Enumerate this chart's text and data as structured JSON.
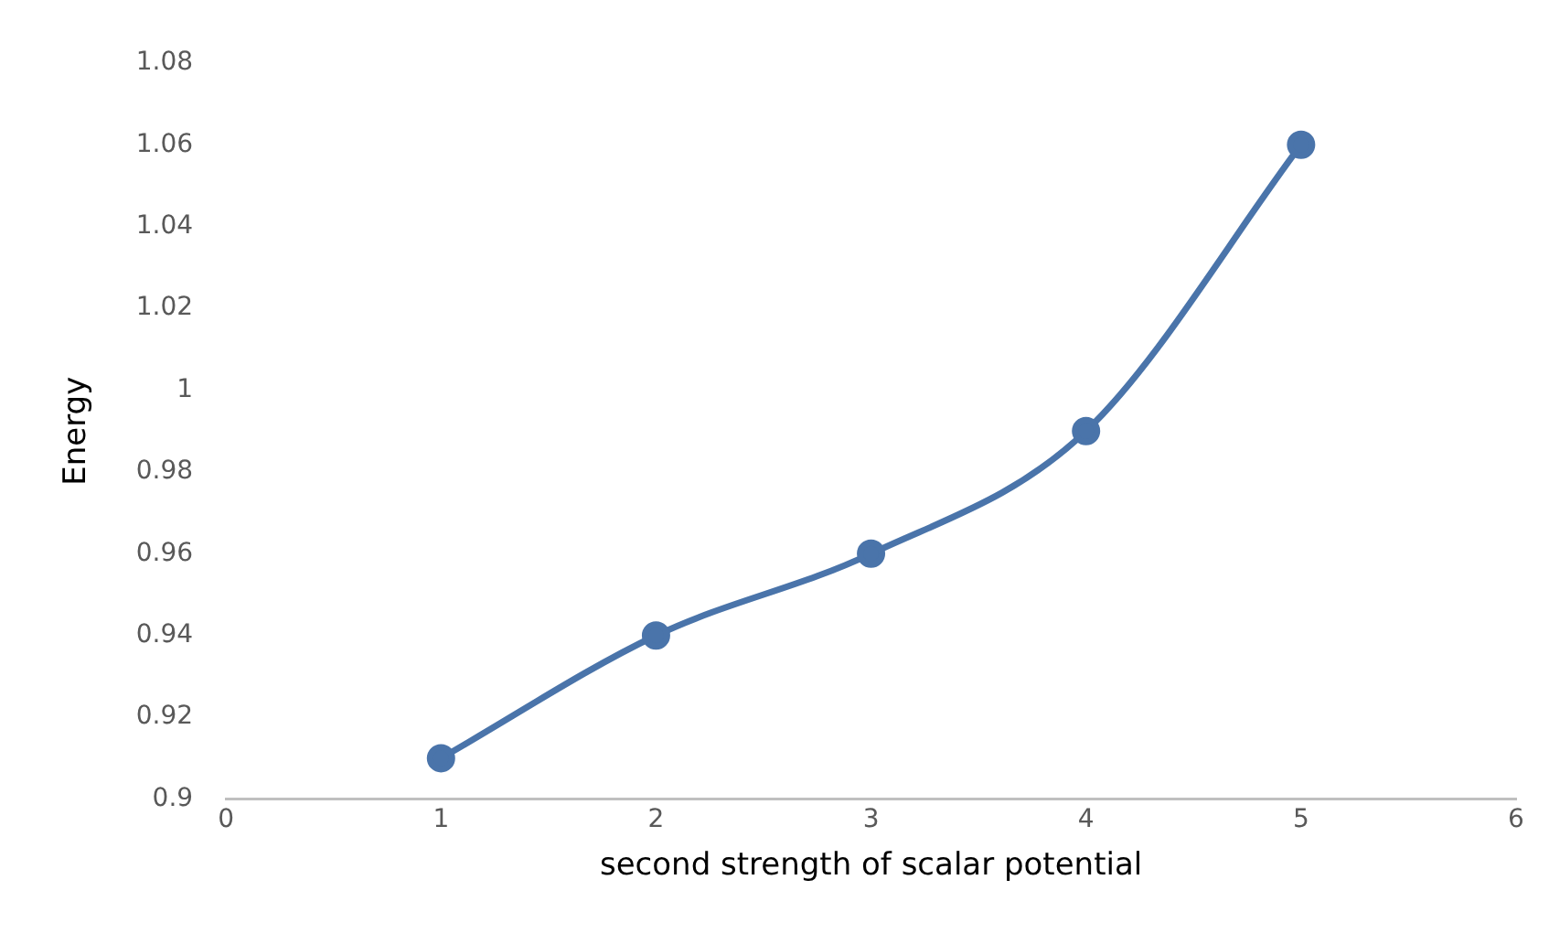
{
  "chart_data": {
    "type": "line",
    "xlabel": "second strength of scalar potential",
    "ylabel": "Energy",
    "x": [
      1,
      2,
      3,
      4,
      5
    ],
    "series": [
      {
        "color": "#4a74aa",
        "values": [
          0.91,
          0.94,
          0.96,
          0.99,
          1.06
        ]
      }
    ],
    "xlim": [
      0,
      6
    ],
    "xticks": [
      0,
      1,
      2,
      3,
      4,
      5,
      6
    ],
    "ylim": [
      0.9,
      1.08
    ],
    "yticks": [
      0.9,
      0.92,
      0.94,
      0.96,
      0.98,
      1,
      1.02,
      1.04,
      1.06,
      1.08
    ],
    "grid": false,
    "legend": false,
    "marker": "circle",
    "line_style": "solid"
  }
}
